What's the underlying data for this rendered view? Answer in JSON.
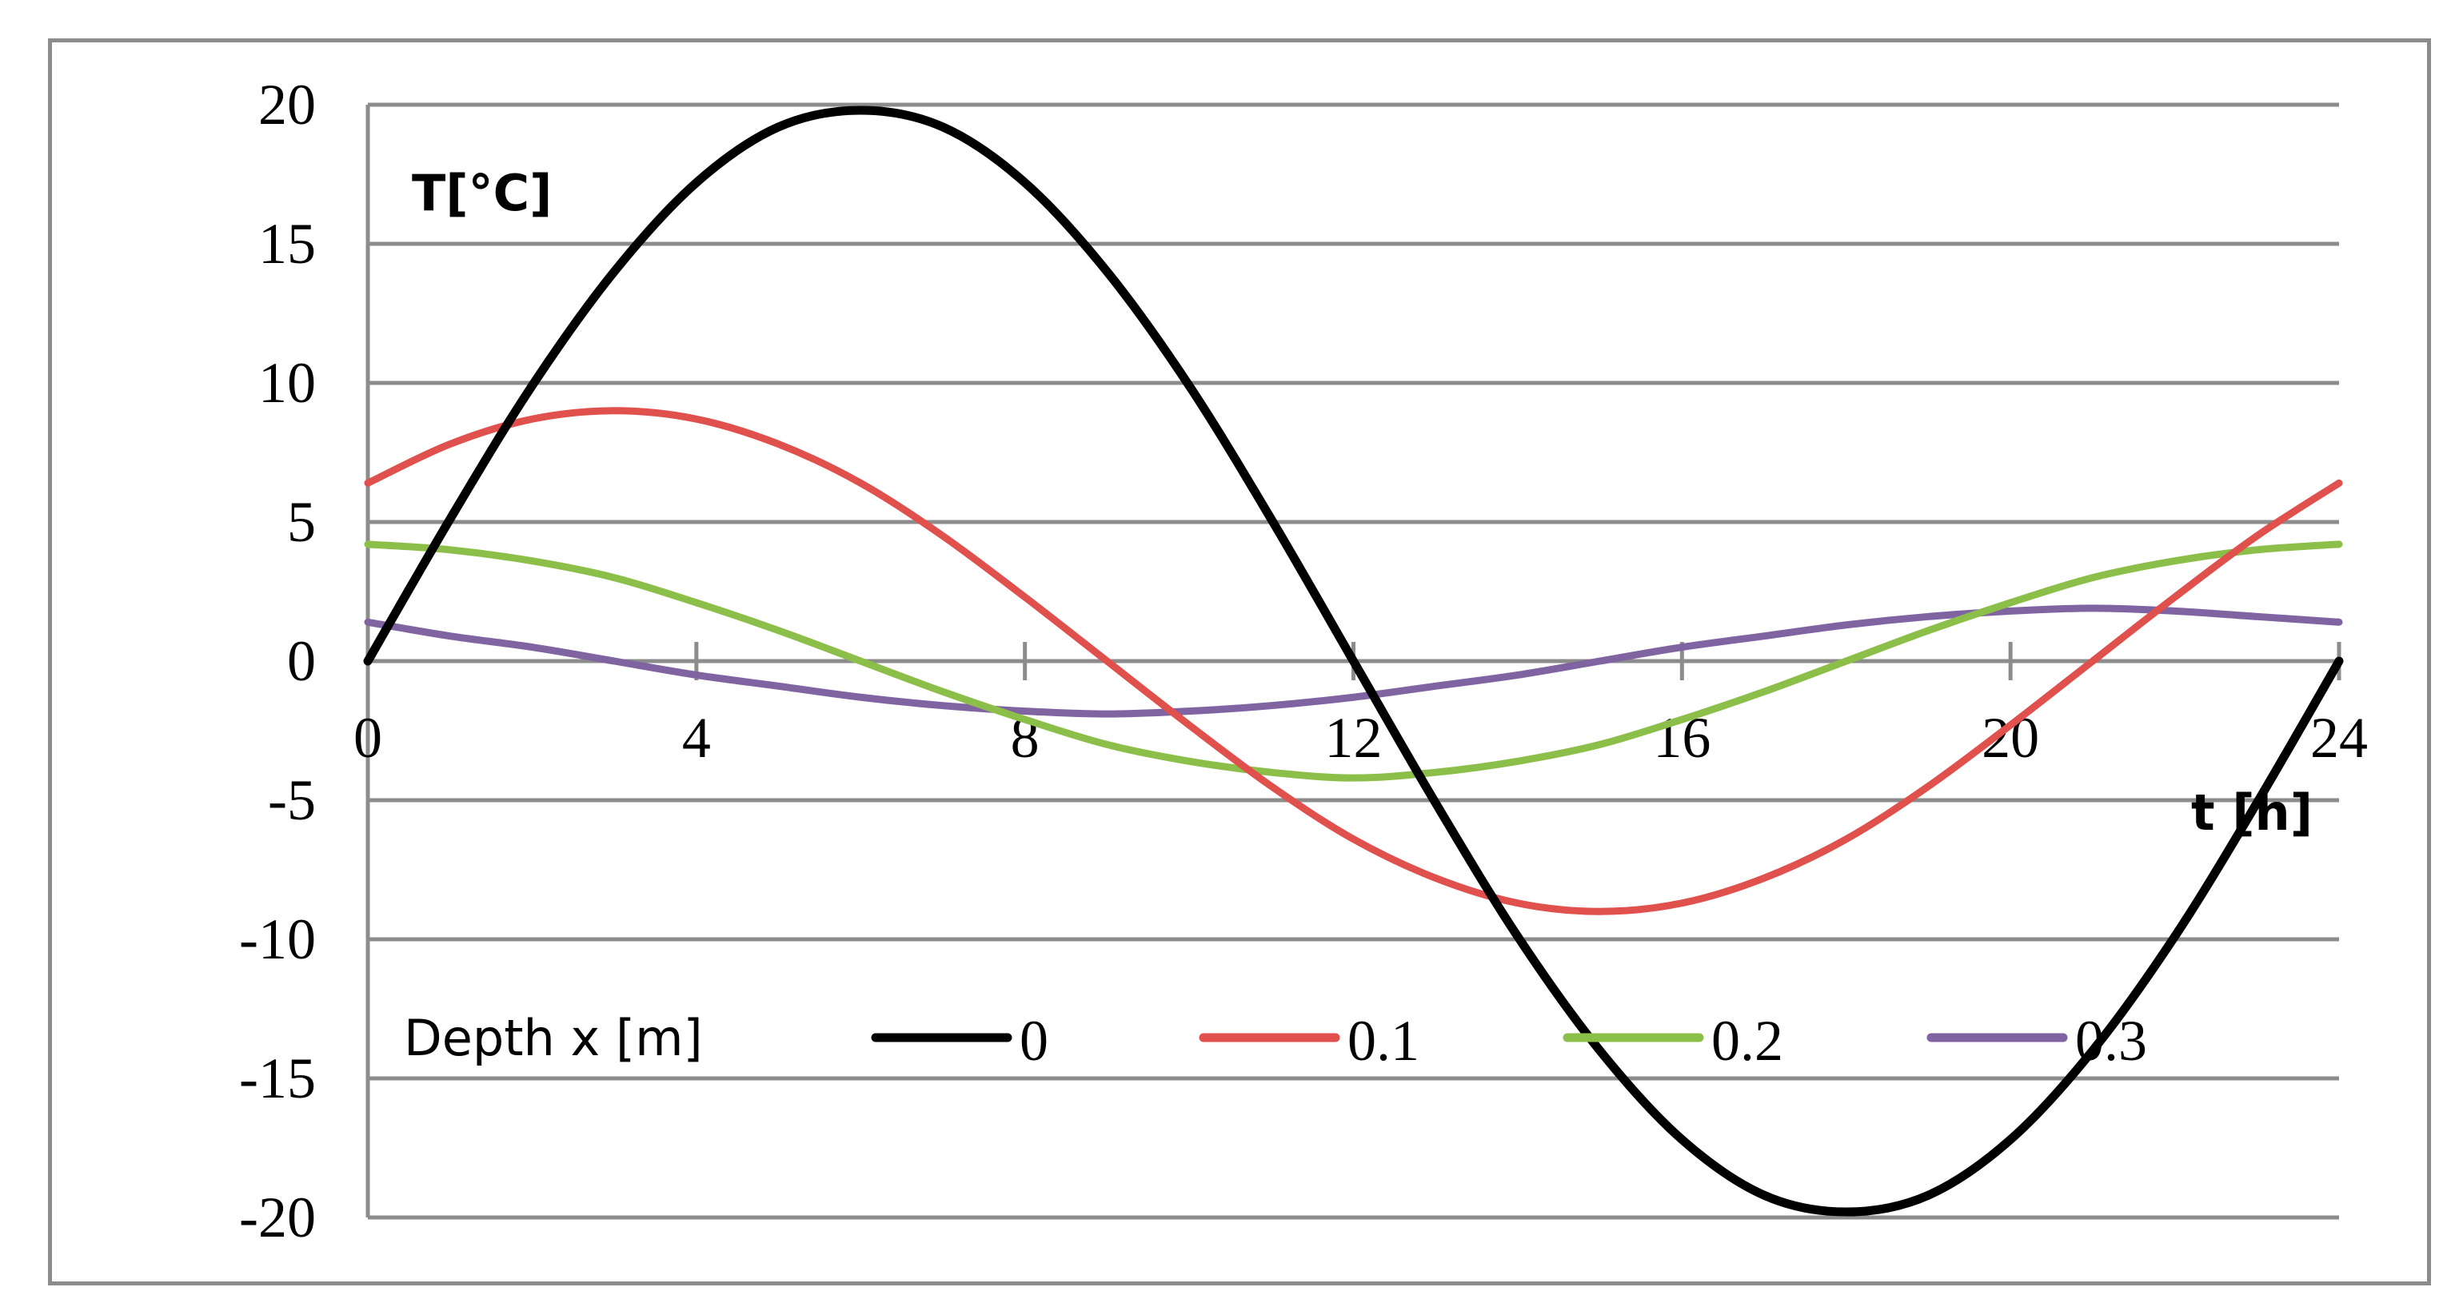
{
  "chart_data": {
    "type": "line",
    "title": "",
    "ylabel": "T[°C]",
    "xlabel": "t [h]",
    "xlim": [
      0,
      24
    ],
    "ylim": [
      -20,
      20
    ],
    "x_ticks": [
      "0",
      "4",
      "8",
      "12",
      "16",
      "20",
      "24"
    ],
    "x_tick_values": [
      0,
      4,
      8,
      12,
      16,
      20,
      24
    ],
    "y_ticks": [
      "20",
      "15",
      "10",
      "5",
      "0",
      "-5",
      "-10",
      "-15",
      "-20"
    ],
    "y_tick_values": [
      20,
      15,
      10,
      5,
      0,
      -5,
      -10,
      -15,
      -20
    ],
    "grid": true,
    "legend_title": "Depth x [m]",
    "legend_position": "bottom-left",
    "x": [
      0,
      1,
      2,
      3,
      4,
      5,
      6,
      7,
      8,
      9,
      10,
      11,
      12,
      13,
      14,
      15,
      16,
      17,
      18,
      19,
      20,
      21,
      22,
      23,
      24
    ],
    "series": [
      {
        "name": "0",
        "color": "#000000",
        "values": [
          0,
          5.1,
          9.9,
          14.0,
          17.2,
          19.2,
          19.8,
          19.2,
          17.2,
          14.0,
          9.9,
          5.1,
          0,
          -5.1,
          -9.9,
          -14.0,
          -17.2,
          -19.2,
          -19.8,
          -19.2,
          -17.2,
          -14.0,
          -9.9,
          -5.1,
          0
        ]
      },
      {
        "name": "0.1",
        "color": "#e0504c",
        "values": [
          6.4,
          7.8,
          8.7,
          9.0,
          8.7,
          7.8,
          6.4,
          4.5,
          2.3,
          0,
          -2.3,
          -4.5,
          -6.4,
          -7.8,
          -8.7,
          -9.0,
          -8.7,
          -7.8,
          -6.4,
          -4.5,
          -2.3,
          0,
          2.3,
          4.5,
          6.4
        ]
      },
      {
        "name": "0.2",
        "color": "#8cbf4a",
        "values": [
          4.2,
          4.0,
          3.6,
          3.0,
          2.1,
          1.1,
          0,
          -1.1,
          -2.1,
          -3.0,
          -3.6,
          -4.0,
          -4.2,
          -4.0,
          -3.6,
          -3.0,
          -2.1,
          -1.1,
          0,
          1.1,
          2.1,
          3.0,
          3.6,
          4.0,
          4.2
        ]
      },
      {
        "name": "0.3",
        "color": "#8064a2",
        "values": [
          1.4,
          0.9,
          0.5,
          0,
          -0.5,
          -0.9,
          -1.3,
          -1.6,
          -1.8,
          -1.9,
          -1.8,
          -1.6,
          -1.3,
          -0.9,
          -0.5,
          0,
          0.5,
          0.9,
          1.3,
          1.6,
          1.8,
          1.9,
          1.8,
          1.6,
          1.4
        ]
      }
    ]
  }
}
